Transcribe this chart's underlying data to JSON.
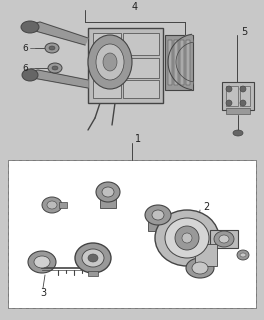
{
  "bg_color": "#c8c8c8",
  "upper_bg": "#c8c8c8",
  "lower_bg": "#ffffff",
  "line_color": "#444444",
  "label_color": "#222222",
  "label_fontsize": 6.5,
  "part_gray": "#888888",
  "part_light": "#bbbbbb",
  "part_dark": "#666666",
  "part_mid": "#999999"
}
